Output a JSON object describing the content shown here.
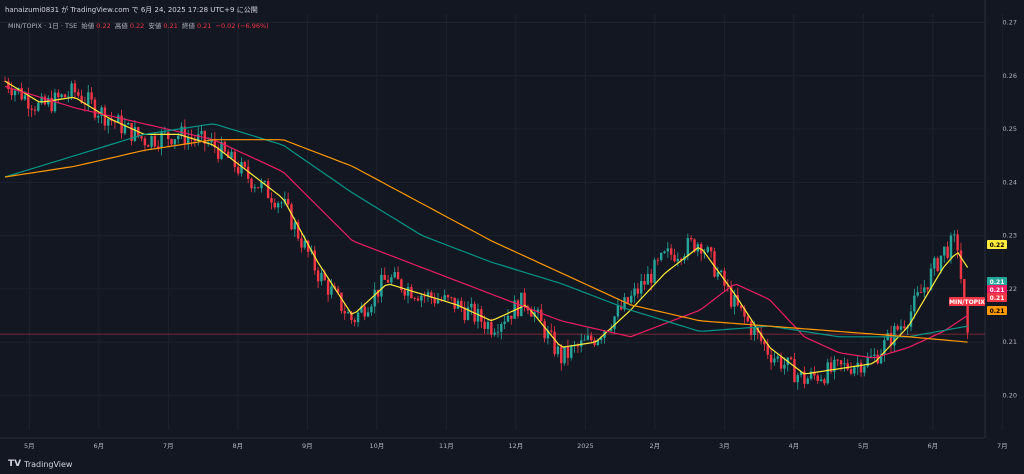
{
  "header": {
    "text": "hanaizumi0831 が TradingView.com で 6月 24, 2025 17:28 UTC+9 に公開"
  },
  "legend": {
    "symbol": "MIN/TOPIX · 1日 · TSE",
    "open_label": "始値",
    "open_value": "0.22",
    "high_label": "高値",
    "high_value": "0.22",
    "low_label": "安値",
    "low_value": "0.21",
    "close_label": "終値",
    "close_value": "0.21",
    "change": "−0.02 (−6.96%)"
  },
  "footer": {
    "logo_text": "TradingView"
  },
  "colors": {
    "background": "#131722",
    "up": "#26a69a",
    "down": "#f23645",
    "ema_fast": "#ffeb3b",
    "ema_mid": "#e91e63",
    "ema_slow_teal": "#009688",
    "ema_slow_orange": "#ff9800"
  },
  "price_tags": [
    {
      "label": "0.22",
      "color": "#ffeb3b",
      "text_color": "#000000"
    },
    {
      "label": "0.21",
      "color": "#26a69a",
      "text_color": "#ffffff"
    },
    {
      "label": "0.21",
      "color": "#e91e63",
      "text_color": "#ffffff"
    },
    {
      "label": "0.21",
      "color": "#f23645",
      "text_color": "#ffffff"
    },
    {
      "label": "MIN/TOPIX",
      "color": "#f23645",
      "text_color": "#ffffff"
    },
    {
      "label": "0.21",
      "color": "#ff9800",
      "text_color": "#000000"
    }
  ],
  "chart_data": {
    "type": "line",
    "title": "MIN/TOPIX · 1日 · TSE",
    "y_ticks": [
      "0.27",
      "0.26",
      "0.25",
      "0.24",
      "0.23",
      "0.22",
      "0.21",
      "0.20"
    ],
    "ylim": [
      0.1935,
      0.2716
    ],
    "x_ticks": [
      "5月",
      "6月",
      "7月",
      "8月",
      "9月",
      "10月",
      "11月",
      "12月",
      "2025",
      "2月",
      "3月",
      "4月",
      "5月",
      "6月",
      "7月"
    ],
    "xlim": [
      0,
      14.1
    ],
    "series": [
      {
        "name": "",
        "role": "close",
        "color": "#f23645",
        "x": [
          0,
          0.5,
          1,
          1.5,
          2,
          2.5,
          3,
          3.5,
          4,
          4.5,
          5,
          5.5,
          6,
          6.5,
          7,
          7.5,
          8,
          8.5,
          9,
          9.5,
          10,
          10.5,
          11,
          11.5,
          12,
          12.5,
          13,
          13.5,
          13.7,
          13.85
        ],
        "y": [
          0.259,
          0.254,
          0.257,
          0.252,
          0.248,
          0.249,
          0.247,
          0.241,
          0.236,
          0.223,
          0.214,
          0.222,
          0.219,
          0.217,
          0.213,
          0.218,
          0.207,
          0.211,
          0.218,
          0.226,
          0.229,
          0.217,
          0.208,
          0.203,
          0.205,
          0.207,
          0.215,
          0.227,
          0.229,
          0.21
        ]
      },
      {
        "name": "",
        "role": "ema-fast",
        "color": "#ffeb3b",
        "x": [
          0,
          0.5,
          1,
          1.5,
          2,
          2.5,
          3,
          3.5,
          4,
          4.5,
          5,
          5.5,
          6,
          6.5,
          7,
          7.5,
          8,
          8.5,
          9,
          9.5,
          10,
          10.5,
          11,
          11.5,
          12,
          12.5,
          13,
          13.5,
          13.7,
          13.85
        ],
        "y": [
          0.259,
          0.255,
          0.256,
          0.252,
          0.249,
          0.249,
          0.247,
          0.242,
          0.237,
          0.225,
          0.215,
          0.221,
          0.219,
          0.217,
          0.214,
          0.217,
          0.209,
          0.21,
          0.216,
          0.223,
          0.228,
          0.219,
          0.209,
          0.204,
          0.205,
          0.206,
          0.213,
          0.224,
          0.227,
          0.224
        ]
      },
      {
        "name": "",
        "role": "ema-mid",
        "color": "#e91e63",
        "x": [
          0,
          1,
          2,
          3,
          4,
          5,
          6,
          7,
          8,
          9,
          10,
          10.5,
          11,
          11.5,
          12,
          12.5,
          13,
          13.5,
          13.85
        ],
        "y": [
          0.258,
          0.254,
          0.251,
          0.248,
          0.242,
          0.229,
          0.224,
          0.219,
          0.214,
          0.211,
          0.216,
          0.221,
          0.218,
          0.211,
          0.208,
          0.207,
          0.209,
          0.212,
          0.215
        ]
      },
      {
        "name": "",
        "role": "ema-slow-teal",
        "color": "#009688",
        "x": [
          0,
          1,
          2,
          3,
          4,
          5,
          6,
          7,
          8,
          9,
          10,
          11,
          12,
          13,
          13.85
        ],
        "y": [
          0.241,
          0.245,
          0.249,
          0.251,
          0.247,
          0.238,
          0.23,
          0.225,
          0.221,
          0.216,
          0.212,
          0.213,
          0.211,
          0.211,
          0.213
        ]
      },
      {
        "name": "",
        "role": "ema-slow-orange",
        "color": "#ff9800",
        "x": [
          0,
          1,
          2,
          3,
          4,
          5,
          6,
          7,
          8,
          9,
          10,
          11,
          12,
          13,
          13.85
        ],
        "y": [
          0.241,
          0.243,
          0.246,
          0.248,
          0.248,
          0.243,
          0.236,
          0.229,
          0.223,
          0.217,
          0.214,
          0.213,
          0.212,
          0.211,
          0.21
        ]
      }
    ],
    "reference_line": 0.2115,
    "grid": true,
    "legend": "top-left"
  }
}
